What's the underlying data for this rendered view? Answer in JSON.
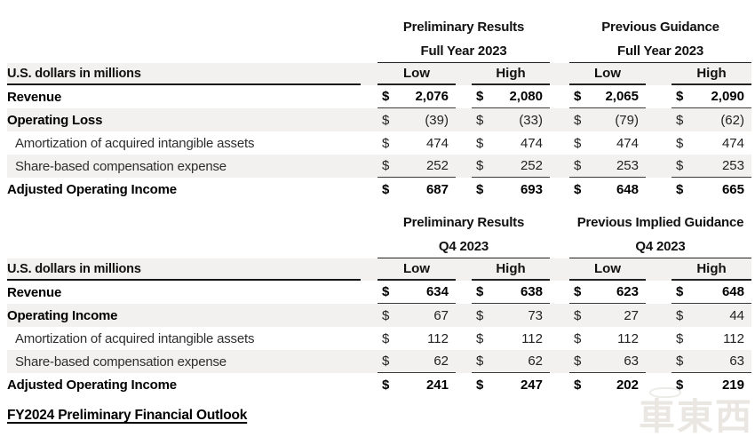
{
  "currency": "$",
  "watermark": {
    "text": "車東西"
  },
  "footer": {
    "link_text": "FY2024 Preliminary Financial Outlook"
  },
  "tables": [
    {
      "unit_label": "U.S. dollars in millions",
      "group_headers": [
        {
          "line1": "Preliminary Results",
          "line2": "Full Year 2023"
        },
        {
          "line1": "Previous Guidance",
          "line2": "Full Year 2023"
        }
      ],
      "col_headers": [
        "Low",
        "High",
        "Low",
        "High"
      ],
      "rows": [
        {
          "label": "Revenue",
          "values": [
            "2,076",
            "2,080",
            "2,065",
            "2,090"
          ],
          "emphasis": true,
          "label_bold": true,
          "indent": false,
          "rule_below": true
        },
        {
          "label": "Operating Loss",
          "values": [
            "(39)",
            "(33)",
            "(79)",
            "(62)"
          ],
          "emphasis": false,
          "label_bold": true,
          "indent": false,
          "rule_below": false
        },
        {
          "label": "Amortization of acquired intangible assets",
          "values": [
            "474",
            "474",
            "474",
            "474"
          ],
          "emphasis": false,
          "label_bold": false,
          "indent": true,
          "rule_below": false
        },
        {
          "label": "Share-based compensation expense",
          "values": [
            "252",
            "252",
            "253",
            "253"
          ],
          "emphasis": false,
          "label_bold": false,
          "indent": true,
          "rule_below": true
        },
        {
          "label": "Adjusted Operating Income",
          "values": [
            "687",
            "693",
            "648",
            "665"
          ],
          "emphasis": true,
          "label_bold": true,
          "indent": false,
          "rule_below": false
        }
      ]
    },
    {
      "unit_label": "U.S. dollars in millions",
      "group_headers": [
        {
          "line1": "Preliminary Results",
          "line2": "Q4 2023"
        },
        {
          "line1": "Previous Implied Guidance",
          "line2": "Q4 2023"
        }
      ],
      "col_headers": [
        "Low",
        "High",
        "Low",
        "High"
      ],
      "rows": [
        {
          "label": "Revenue",
          "values": [
            "634",
            "638",
            "623",
            "648"
          ],
          "emphasis": true,
          "label_bold": true,
          "indent": false,
          "rule_below": true
        },
        {
          "label": "Operating Income",
          "values": [
            "67",
            "73",
            "27",
            "44"
          ],
          "emphasis": false,
          "label_bold": true,
          "indent": false,
          "rule_below": false
        },
        {
          "label": "Amortization of acquired intangible assets",
          "values": [
            "112",
            "112",
            "112",
            "112"
          ],
          "emphasis": false,
          "label_bold": false,
          "indent": true,
          "rule_below": false
        },
        {
          "label": "Share-based compensation expense",
          "values": [
            "62",
            "62",
            "63",
            "63"
          ],
          "emphasis": false,
          "label_bold": false,
          "indent": true,
          "rule_below": true
        },
        {
          "label": "Adjusted Operating Income",
          "values": [
            "241",
            "247",
            "202",
            "219"
          ],
          "emphasis": true,
          "label_bold": true,
          "indent": false,
          "rule_below": false
        }
      ]
    }
  ]
}
